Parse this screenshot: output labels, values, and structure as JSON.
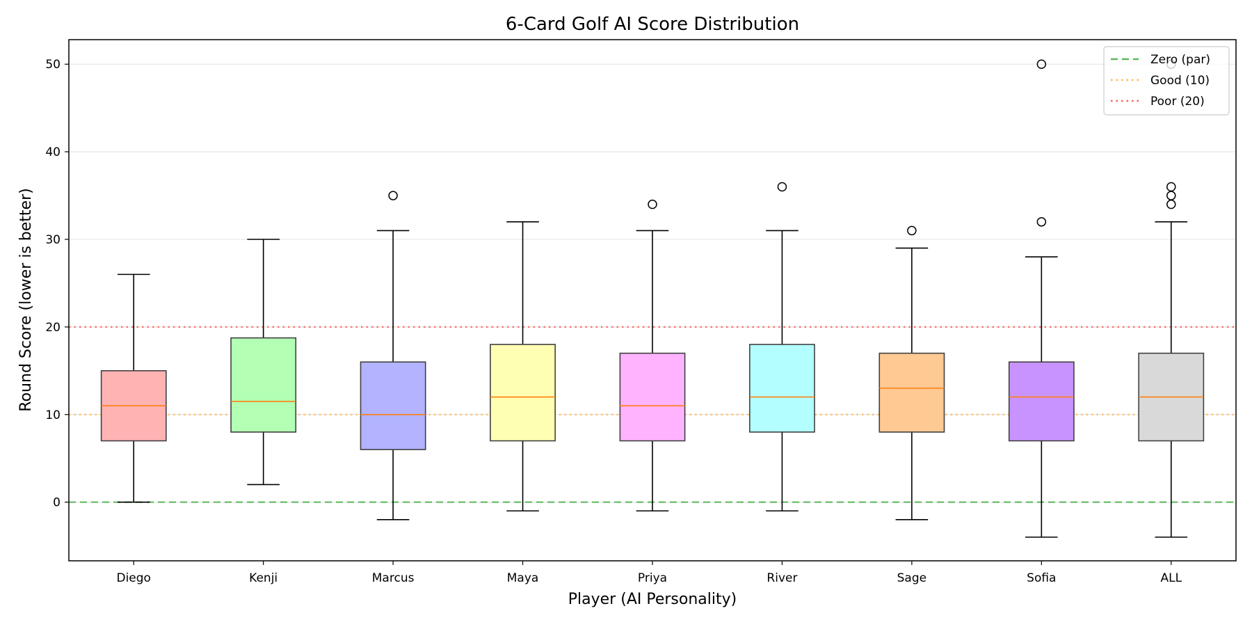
{
  "chart_data": {
    "type": "box",
    "title": "6-Card Golf AI Score Distribution",
    "xlabel": "Player (AI Personality)",
    "ylabel": "Round Score (lower is better)",
    "ylim": [
      -6.7,
      52.8
    ],
    "yticks": [
      0,
      10,
      20,
      30,
      40,
      50
    ],
    "grid": "y",
    "legend_position": "top-right",
    "reference_lines": [
      {
        "name": "Zero (par)",
        "y": 0,
        "color": "#5cb85c",
        "style": "dashed"
      },
      {
        "name": "Good (10)",
        "y": 10,
        "color": "#ffb74d",
        "style": "dotted"
      },
      {
        "name": "Poor (20)",
        "y": 20,
        "color": "#ff5c5c",
        "style": "dotted"
      }
    ],
    "boxes": [
      {
        "label": "Diego",
        "color": "#ffb3b3",
        "whisker_low": 0,
        "q1": 7,
        "median": 11,
        "q3": 15,
        "whisker_high": 26,
        "outliers": []
      },
      {
        "label": "Kenji",
        "color": "#b3ffb3",
        "whisker_low": 2,
        "q1": 8,
        "median": 11.5,
        "q3": 18.75,
        "whisker_high": 30,
        "outliers": []
      },
      {
        "label": "Marcus",
        "color": "#b3b3ff",
        "whisker_low": -2,
        "q1": 6,
        "median": 10,
        "q3": 16,
        "whisker_high": 31,
        "outliers": [
          35
        ]
      },
      {
        "label": "Maya",
        "color": "#ffffb3",
        "whisker_low": -1,
        "q1": 7,
        "median": 12,
        "q3": 18,
        "whisker_high": 32,
        "outliers": []
      },
      {
        "label": "Priya",
        "color": "#ffb3ff",
        "whisker_low": -1,
        "q1": 7,
        "median": 11,
        "q3": 17,
        "whisker_high": 31,
        "outliers": [
          34
        ]
      },
      {
        "label": "River",
        "color": "#b3ffff",
        "whisker_low": -1,
        "q1": 8,
        "median": 12,
        "q3": 18,
        "whisker_high": 31,
        "outliers": [
          36
        ]
      },
      {
        "label": "Sage",
        "color": "#ffc993",
        "whisker_low": -2,
        "q1": 8,
        "median": 13,
        "q3": 17,
        "whisker_high": 29,
        "outliers": [
          31
        ]
      },
      {
        "label": "Sofia",
        "color": "#c993ff",
        "whisker_low": -4,
        "q1": 7,
        "median": 12,
        "q3": 16,
        "whisker_high": 28,
        "outliers": [
          32,
          50
        ]
      },
      {
        "label": "ALL",
        "color": "#d9d9d9",
        "whisker_low": -4,
        "q1": 7,
        "median": 12,
        "q3": 17,
        "whisker_high": 32,
        "outliers": [
          34,
          35,
          36,
          50
        ]
      }
    ]
  }
}
